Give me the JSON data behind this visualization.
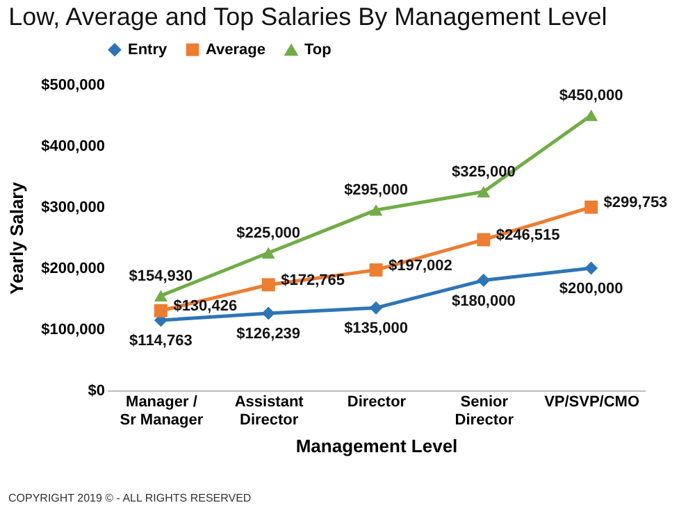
{
  "chart_data": {
    "type": "line",
    "title": "Low, Average and Top Salaries By Management Level",
    "xlabel": "Management Level",
    "ylabel": "Yearly Salary",
    "categories": [
      "Manager / Sr Manager",
      "Assistant Director",
      "Director",
      "Senior Director",
      "VP/SVP/CMO"
    ],
    "ylim": [
      0,
      500000
    ],
    "yticks": [
      {
        "value": 0,
        "label": "$0"
      },
      {
        "value": 100000,
        "label": "$100,000"
      },
      {
        "value": 200000,
        "label": "$200,000"
      },
      {
        "value": 300000,
        "label": "$300,000"
      },
      {
        "value": 400000,
        "label": "$400,000"
      },
      {
        "value": 500000,
        "label": "$500,000"
      }
    ],
    "grid": false,
    "legend": "top",
    "series": [
      {
        "name": "Entry",
        "color": "#2e75b6",
        "marker": "diamond",
        "values": [
          114763,
          126239,
          135000,
          180000,
          200000
        ],
        "value_labels": [
          "$114,763",
          "$126,239",
          "$135,000",
          "$180,000",
          "$200,000"
        ]
      },
      {
        "name": "Average",
        "color": "#ed7d31",
        "marker": "square",
        "values": [
          130426,
          172765,
          197002,
          246515,
          299753
        ],
        "value_labels": [
          "$130,426",
          "$172,765",
          "$197,002",
          "$246,515",
          "$299,753"
        ]
      },
      {
        "name": "Top",
        "color": "#70ad47",
        "marker": "triangle",
        "values": [
          154930,
          225000,
          295000,
          325000,
          450000
        ],
        "value_labels": [
          "$154,930",
          "$225,000",
          "$295,000",
          "$325,000",
          "$450,000"
        ]
      }
    ],
    "annotations": [
      "COPYRIGHT 2019 © - ALL RIGHTS RESERVED"
    ]
  }
}
